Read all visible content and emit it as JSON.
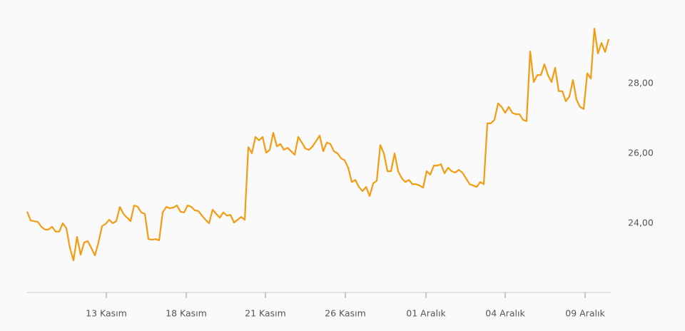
{
  "chart_data": {
    "type": "line",
    "color": "#f39c12",
    "values": [
      24.33,
      24.08,
      24.06,
      24.04,
      23.9,
      23.82,
      23.82,
      23.9,
      23.76,
      23.76,
      24.0,
      23.86,
      23.29,
      22.94,
      23.61,
      23.1,
      23.45,
      23.49,
      23.29,
      23.08,
      23.45,
      23.92,
      23.98,
      24.1,
      24.0,
      24.06,
      24.47,
      24.27,
      24.16,
      24.06,
      24.51,
      24.47,
      24.31,
      24.27,
      23.55,
      23.53,
      23.55,
      23.51,
      24.31,
      24.47,
      24.43,
      24.45,
      24.51,
      24.33,
      24.31,
      24.51,
      24.47,
      24.37,
      24.35,
      24.22,
      24.1,
      24.0,
      24.39,
      24.27,
      24.16,
      24.31,
      24.22,
      24.24,
      24.02,
      24.1,
      24.18,
      24.1,
      26.18,
      26.0,
      26.47,
      26.37,
      26.47,
      26.02,
      26.1,
      26.59,
      26.2,
      26.27,
      26.1,
      26.16,
      26.06,
      25.96,
      26.47,
      26.31,
      26.14,
      26.1,
      26.2,
      26.35,
      26.51,
      26.06,
      26.31,
      26.27,
      26.06,
      26.0,
      25.86,
      25.8,
      25.59,
      25.18,
      25.24,
      25.04,
      24.92,
      25.04,
      24.78,
      25.14,
      25.22,
      26.24,
      26.0,
      25.49,
      25.49,
      26.0,
      25.49,
      25.29,
      25.18,
      25.24,
      25.12,
      25.12,
      25.08,
      25.02,
      25.49,
      25.39,
      25.65,
      25.65,
      25.69,
      25.43,
      25.59,
      25.49,
      25.45,
      25.53,
      25.45,
      25.29,
      25.12,
      25.08,
      25.04,
      25.18,
      25.12,
      26.86,
      26.86,
      26.96,
      27.43,
      27.33,
      27.16,
      27.33,
      27.16,
      27.12,
      27.12,
      26.96,
      26.92,
      28.92,
      28.04,
      28.24,
      28.24,
      28.55,
      28.24,
      28.04,
      28.45,
      27.78,
      27.78,
      27.49,
      27.63,
      28.1,
      27.53,
      27.33,
      27.27,
      28.29,
      28.14,
      29.57,
      28.86,
      29.16,
      28.9,
      29.27
    ],
    "xlim": [
      0,
      163.6
    ],
    "xticks": [
      {
        "value": 22.2,
        "label": "13 Kasım"
      },
      {
        "value": 44.6,
        "label": "18 Kasım"
      },
      {
        "value": 66.8,
        "label": "21 Kasım"
      },
      {
        "value": 89.2,
        "label": "26 Kasım"
      },
      {
        "value": 111.8,
        "label": "01 Aralık"
      },
      {
        "value": 134,
        "label": "04 Aralık"
      },
      {
        "value": 156.4,
        "label": "09 Aralık"
      }
    ],
    "ylim": [
      22.02,
      29.98
    ],
    "yticks": [
      {
        "value": 24,
        "label": "24,00"
      },
      {
        "value": 26,
        "label": "26,00"
      },
      {
        "value": 28,
        "label": "28,00"
      }
    ]
  }
}
